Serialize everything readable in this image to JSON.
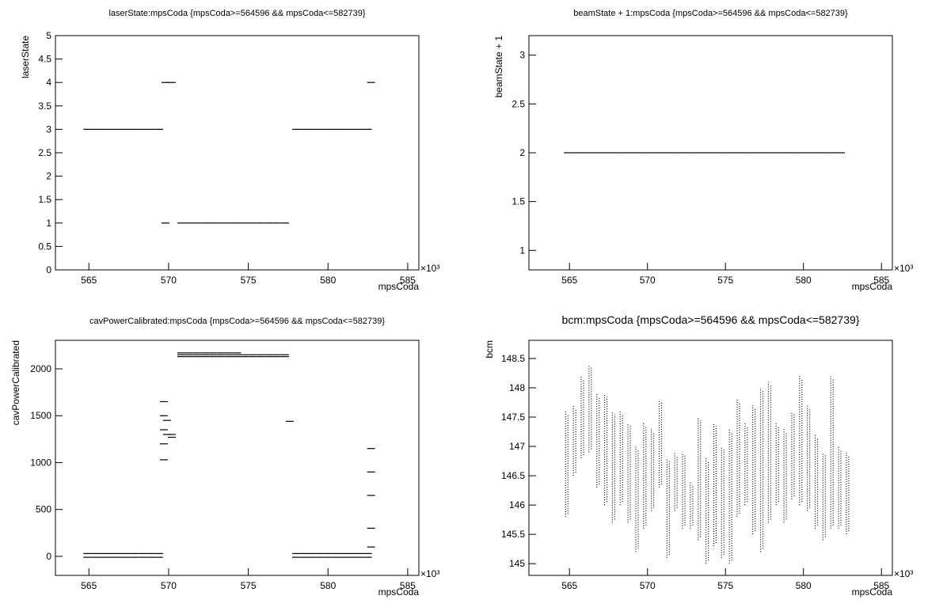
{
  "chart_data": [
    {
      "type": "scatter",
      "title": "laserState:mpsCoda {mpsCoda>=564596 && mpsCoda<=582739}",
      "x_label": "mpsCoda",
      "y_label": "laserState",
      "x_multiplier": "×10³",
      "xlim": [
        562.9,
        585.7
      ],
      "xticks": [
        565,
        570,
        575,
        580,
        585
      ],
      "ylim": [
        0,
        5
      ],
      "yticks": [
        0,
        0.5,
        1,
        1.5,
        2,
        2.5,
        3,
        3.5,
        4,
        4.5,
        5
      ],
      "color": "#000000",
      "x": [
        564.9,
        565.4,
        565.9,
        566.4,
        566.9,
        567.4,
        567.9,
        568.4,
        568.9,
        569.4,
        569.8,
        570.2,
        569.8,
        570.8,
        571.3,
        571.8,
        572.3,
        572.8,
        573.3,
        573.8,
        574.3,
        574.8,
        575.3,
        575.8,
        576.3,
        576.8,
        577.3,
        578.0,
        578.5,
        579.0,
        579.5,
        580.0,
        580.5,
        581.0,
        581.5,
        582.0,
        582.5,
        582.7
      ],
      "y": [
        3,
        3,
        3,
        3,
        3,
        3,
        3,
        3,
        3,
        3,
        4,
        4,
        1,
        1,
        1,
        1,
        1,
        1,
        1,
        1,
        1,
        1,
        1,
        1,
        1,
        1,
        1,
        3,
        3,
        3,
        3,
        3,
        3,
        3,
        3,
        3,
        3,
        4
      ]
    },
    {
      "type": "scatter",
      "title": "beamState + 1:mpsCoda {mpsCoda>=564596 && mpsCoda<=582739}",
      "x_label": "mpsCoda",
      "y_label": "beamState + 1",
      "x_multiplier": "×10³",
      "xlim": [
        562.4,
        585.7
      ],
      "xticks": [
        565,
        570,
        575,
        580,
        585
      ],
      "ylim": [
        0.8,
        3.2
      ],
      "yticks": [
        1,
        1.5,
        2,
        2.5,
        3
      ],
      "color": "#000000",
      "x": [
        564.9,
        565.4,
        565.9,
        566.4,
        566.9,
        567.4,
        567.9,
        568.4,
        568.9,
        569.4,
        569.9,
        570.4,
        570.9,
        571.4,
        571.9,
        572.4,
        572.9,
        573.4,
        573.9,
        574.4,
        574.9,
        575.4,
        575.9,
        576.4,
        576.9,
        577.4,
        577.9,
        578.4,
        578.9,
        579.4,
        579.9,
        580.4,
        580.9,
        581.4,
        581.9,
        582.4
      ],
      "y": [
        2,
        2,
        2,
        2,
        2,
        2,
        2,
        2,
        2,
        2,
        2,
        2,
        2,
        2,
        2,
        2,
        2,
        2,
        2,
        2,
        2,
        2,
        2,
        2,
        2,
        2,
        2,
        2,
        2,
        2,
        2,
        2,
        2,
        2,
        2,
        2
      ]
    },
    {
      "type": "scatter",
      "title": "cavPowerCalibrated:mpsCoda {mpsCoda>=564596 && mpsCoda<=582739}",
      "x_label": "mpsCoda",
      "y_label": "cavPowerCalibrated",
      "x_multiplier": "×10³",
      "xlim": [
        562.9,
        585.7
      ],
      "xticks": [
        565,
        570,
        575,
        580,
        585
      ],
      "ylim": [
        -203,
        2304
      ],
      "yticks": [
        0,
        500,
        1000,
        1500,
        2000
      ],
      "color": "#000000",
      "x": [
        564.9,
        565.4,
        565.9,
        566.4,
        566.9,
        567.4,
        567.9,
        568.4,
        568.9,
        569.4,
        564.9,
        565.4,
        565.9,
        566.4,
        566.9,
        567.4,
        567.9,
        568.4,
        568.9,
        569.4,
        569.7,
        569.7,
        569.7,
        569.7,
        569.7,
        569.9,
        569.9,
        570.2,
        570.2,
        570.8,
        571.3,
        571.8,
        572.3,
        572.8,
        573.3,
        573.8,
        574.3,
        574.8,
        575.3,
        575.8,
        576.3,
        576.8,
        577.3,
        570.8,
        571.3,
        571.8,
        572.3,
        572.8,
        573.3,
        573.8,
        574.3,
        574.8,
        575.3,
        575.8,
        576.3,
        576.8,
        577.3,
        570.8,
        571.3,
        571.8,
        572.3,
        572.8,
        573.3,
        573.8,
        574.3,
        577.6,
        578.0,
        578.5,
        579.0,
        579.5,
        580.0,
        580.5,
        581.0,
        581.5,
        582.0,
        582.5,
        578.0,
        578.5,
        579.0,
        579.5,
        580.0,
        580.5,
        581.0,
        581.5,
        582.0,
        582.5,
        582.7,
        582.7,
        582.7,
        582.7,
        582.7
      ],
      "y": [
        30,
        30,
        30,
        30,
        30,
        30,
        30,
        30,
        30,
        30,
        -10,
        -10,
        -10,
        -10,
        -10,
        -10,
        -10,
        -10,
        -10,
        -10,
        1030,
        1200,
        1350,
        1500,
        1650,
        1300,
        1450,
        1270,
        1300,
        2130,
        2130,
        2130,
        2130,
        2130,
        2130,
        2130,
        2130,
        2130,
        2130,
        2130,
        2130,
        2130,
        2130,
        2150,
        2150,
        2150,
        2150,
        2150,
        2150,
        2150,
        2150,
        2150,
        2150,
        2150,
        2150,
        2150,
        2150,
        2170,
        2170,
        2170,
        2170,
        2170,
        2170,
        2170,
        2170,
        1440,
        30,
        30,
        30,
        30,
        30,
        30,
        30,
        30,
        30,
        30,
        -10,
        -10,
        -10,
        -10,
        -10,
        -10,
        -10,
        -10,
        -10,
        -10,
        100,
        300,
        650,
        900,
        1150
      ]
    },
    {
      "type": "range",
      "title": "bcm:mpsCoda {mpsCoda>=564596 && mpsCoda<=582739}",
      "x_label": "mpsCoda",
      "y_label": "bcm",
      "x_multiplier": "×10³",
      "xlim": [
        562.4,
        585.7
      ],
      "xticks": [
        565,
        570,
        575,
        580,
        585
      ],
      "ylim": [
        144.8,
        148.81
      ],
      "yticks": [
        145,
        145.5,
        146,
        146.5,
        147,
        147.5,
        148,
        148.5
      ],
      "color": "#000000",
      "x": [
        564.75,
        565.25,
        565.75,
        566.25,
        566.75,
        567.25,
        567.75,
        568.25,
        568.75,
        569.25,
        569.75,
        570.25,
        570.75,
        571.25,
        571.75,
        572.25,
        572.75,
        573.25,
        573.75,
        574.25,
        574.75,
        575.25,
        575.75,
        576.25,
        576.75,
        577.25,
        577.75,
        578.25,
        578.75,
        579.25,
        579.75,
        580.25,
        580.75,
        581.25,
        581.75,
        582.25,
        582.75
      ],
      "low": [
        145.8,
        146.5,
        146.8,
        146.9,
        146.3,
        146.0,
        145.7,
        146.0,
        145.7,
        145.2,
        145.6,
        145.9,
        146.3,
        145.1,
        145.9,
        145.6,
        145.6,
        145.4,
        145.0,
        145.3,
        145.1,
        145.0,
        145.8,
        146.0,
        145.5,
        145.2,
        145.7,
        146.0,
        145.7,
        146.1,
        146.0,
        145.9,
        145.6,
        145.4,
        145.6,
        145.6,
        145.5
      ],
      "high": [
        147.6,
        147.7,
        148.2,
        148.4,
        147.9,
        147.9,
        147.6,
        147.6,
        147.4,
        147.0,
        147.4,
        147.3,
        147.8,
        146.8,
        146.9,
        146.9,
        146.4,
        147.5,
        146.8,
        147.4,
        147.0,
        147.3,
        147.8,
        147.4,
        147.7,
        148.0,
        148.1,
        147.4,
        147.3,
        147.6,
        148.2,
        147.7,
        147.2,
        146.9,
        148.2,
        147.0,
        146.9
      ]
    }
  ]
}
